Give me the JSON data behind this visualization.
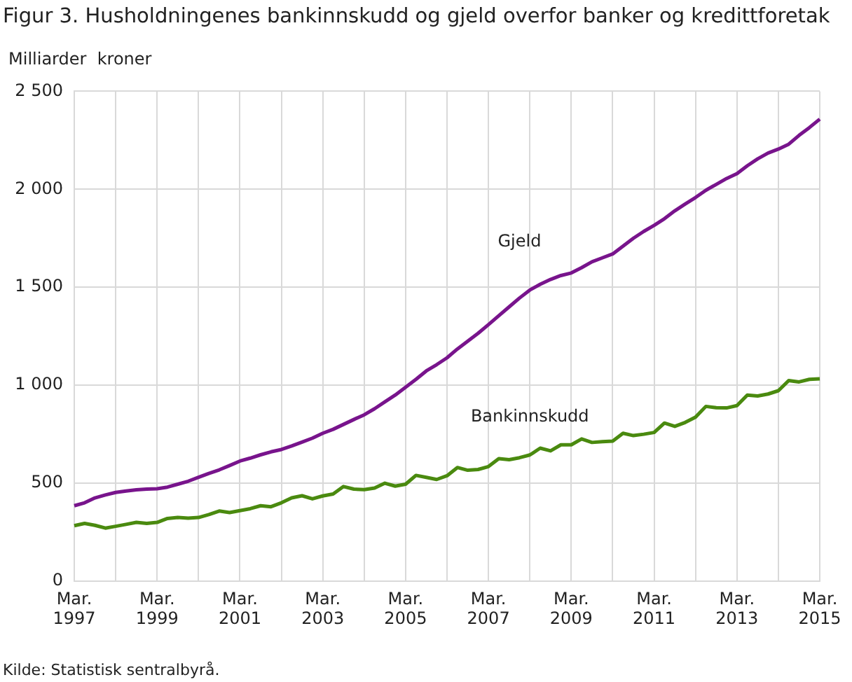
{
  "chart_data": {
    "type": "line",
    "title": "Figur 3. Husholdningenes bankinnskudd og gjeld overfor banker og kredittforetak",
    "ylabel": "Milliarder  kroner",
    "categories": [
      "Mar. 1997",
      null,
      null,
      null,
      null,
      null,
      null,
      null,
      "Mar. 1999",
      null,
      null,
      null,
      null,
      null,
      null,
      null,
      "Mar. 2001",
      null,
      null,
      null,
      null,
      null,
      null,
      null,
      "Mar. 2003",
      null,
      null,
      null,
      null,
      null,
      null,
      null,
      "Mar. 2005",
      null,
      null,
      null,
      null,
      null,
      null,
      null,
      "Mar. 2007",
      null,
      null,
      null,
      null,
      null,
      null,
      null,
      "Mar. 2009",
      null,
      null,
      null,
      null,
      null,
      null,
      null,
      "Mar. 2011",
      null,
      null,
      null,
      null,
      null,
      null,
      null,
      "Mar. 2013",
      null,
      null,
      null,
      null,
      null,
      null,
      null,
      "Mar. 2015"
    ],
    "series": [
      {
        "name": "Gjeld",
        "color": "#78148c",
        "values": [
          385,
          400,
          425,
          440,
          453,
          460,
          466,
          470,
          472,
          480,
          495,
          510,
          530,
          550,
          568,
          590,
          613,
          628,
          645,
          660,
          672,
          690,
          710,
          730,
          755,
          775,
          800,
          825,
          849,
          880,
          915,
          950,
          990,
          1030,
          1073,
          1105,
          1140,
          1185,
          1225,
          1265,
          1309,
          1355,
          1400,
          1445,
          1486,
          1515,
          1540,
          1560,
          1573,
          1600,
          1630,
          1650,
          1670,
          1710,
          1750,
          1785,
          1816,
          1850,
          1890,
          1925,
          1958,
          1995,
          2025,
          2055,
          2080,
          2120,
          2155,
          2185,
          2205,
          2230,
          2275,
          2315,
          2358
        ]
      },
      {
        "name": "Bankinnskudd",
        "color": "#4a8a0f",
        "values": [
          283,
          295,
          285,
          271,
          280,
          290,
          300,
          295,
          300,
          320,
          325,
          322,
          325,
          340,
          358,
          350,
          360,
          370,
          385,
          380,
          400,
          425,
          436,
          420,
          435,
          445,
          483,
          470,
          467,
          475,
          500,
          485,
          495,
          540,
          530,
          519,
          538,
          580,
          566,
          570,
          585,
          625,
          620,
          630,
          644,
          679,
          665,
          696,
          696,
          726,
          708,
          712,
          715,
          755,
          743,
          750,
          759,
          807,
          790,
          810,
          837,
          892,
          885,
          884,
          896,
          950,
          945,
          955,
          972,
          1024,
          1017,
          1030,
          1033
        ]
      }
    ],
    "ylim": [
      0,
      2500
    ],
    "yticks": [
      0,
      500,
      {
        "value": 1000,
        "label": "1 000"
      },
      {
        "value": 1500,
        "label": "1 500"
      },
      {
        "value": 2000,
        "label": "2 000"
      },
      {
        "value": 2500,
        "label": "2 500"
      }
    ],
    "grid": true,
    "legend": false,
    "marker": "none",
    "line_style": "solid",
    "annotations": [
      "Kilde: Statistisk sentralbyrå."
    ]
  }
}
